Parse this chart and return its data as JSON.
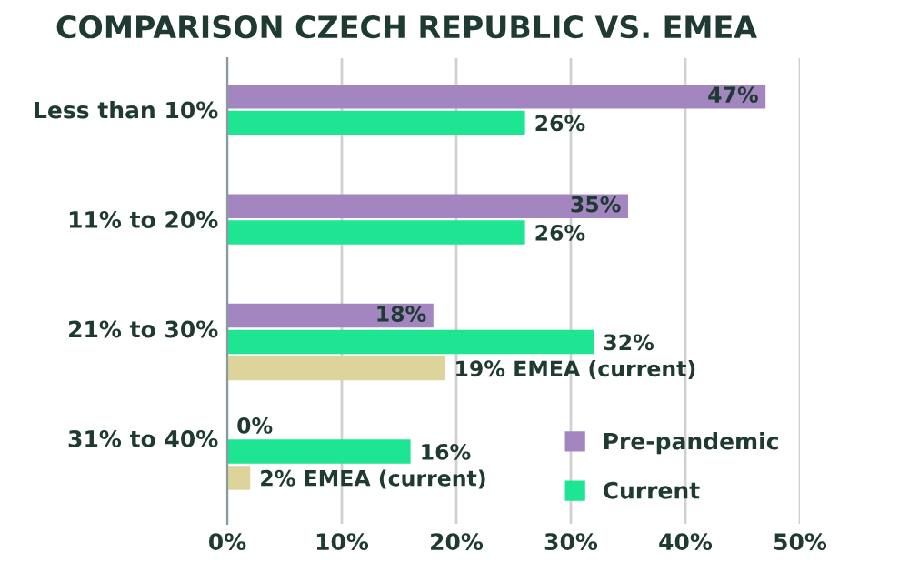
{
  "chart_data": {
    "type": "bar",
    "orientation": "horizontal",
    "title": "COMPARISON CZECH REPUBLIC VS. EMEA",
    "categories": [
      "Less than 10%",
      "11% to 20%",
      "21% to 30%",
      "31% to 40%"
    ],
    "series": [
      {
        "name": "Pre-pandemic",
        "color": "#a385c0",
        "values": [
          47,
          35,
          18,
          0
        ],
        "value_labels": [
          "47%",
          "35%",
          "18%",
          "0%"
        ]
      },
      {
        "name": "Current",
        "color": "#1de592",
        "values": [
          26,
          26,
          32,
          16
        ],
        "value_labels": [
          "26%",
          "26%",
          "32%",
          "16%"
        ]
      },
      {
        "color": "#dcd49a",
        "values": [
          null,
          null,
          19,
          2
        ],
        "value_labels": [
          null,
          null,
          "19% EMEA (current)",
          "2% EMEA (current)"
        ]
      }
    ],
    "xlim": [
      0,
      50
    ],
    "xticks": [
      {
        "value": 0,
        "label": "0%"
      },
      {
        "value": 10,
        "label": "10%"
      },
      {
        "value": 20,
        "label": "20%"
      },
      {
        "value": 30,
        "label": "30%"
      },
      {
        "value": 40,
        "label": "40%"
      },
      {
        "value": 50,
        "label": "50%"
      }
    ],
    "grid": "x",
    "legend": "bottom right"
  }
}
